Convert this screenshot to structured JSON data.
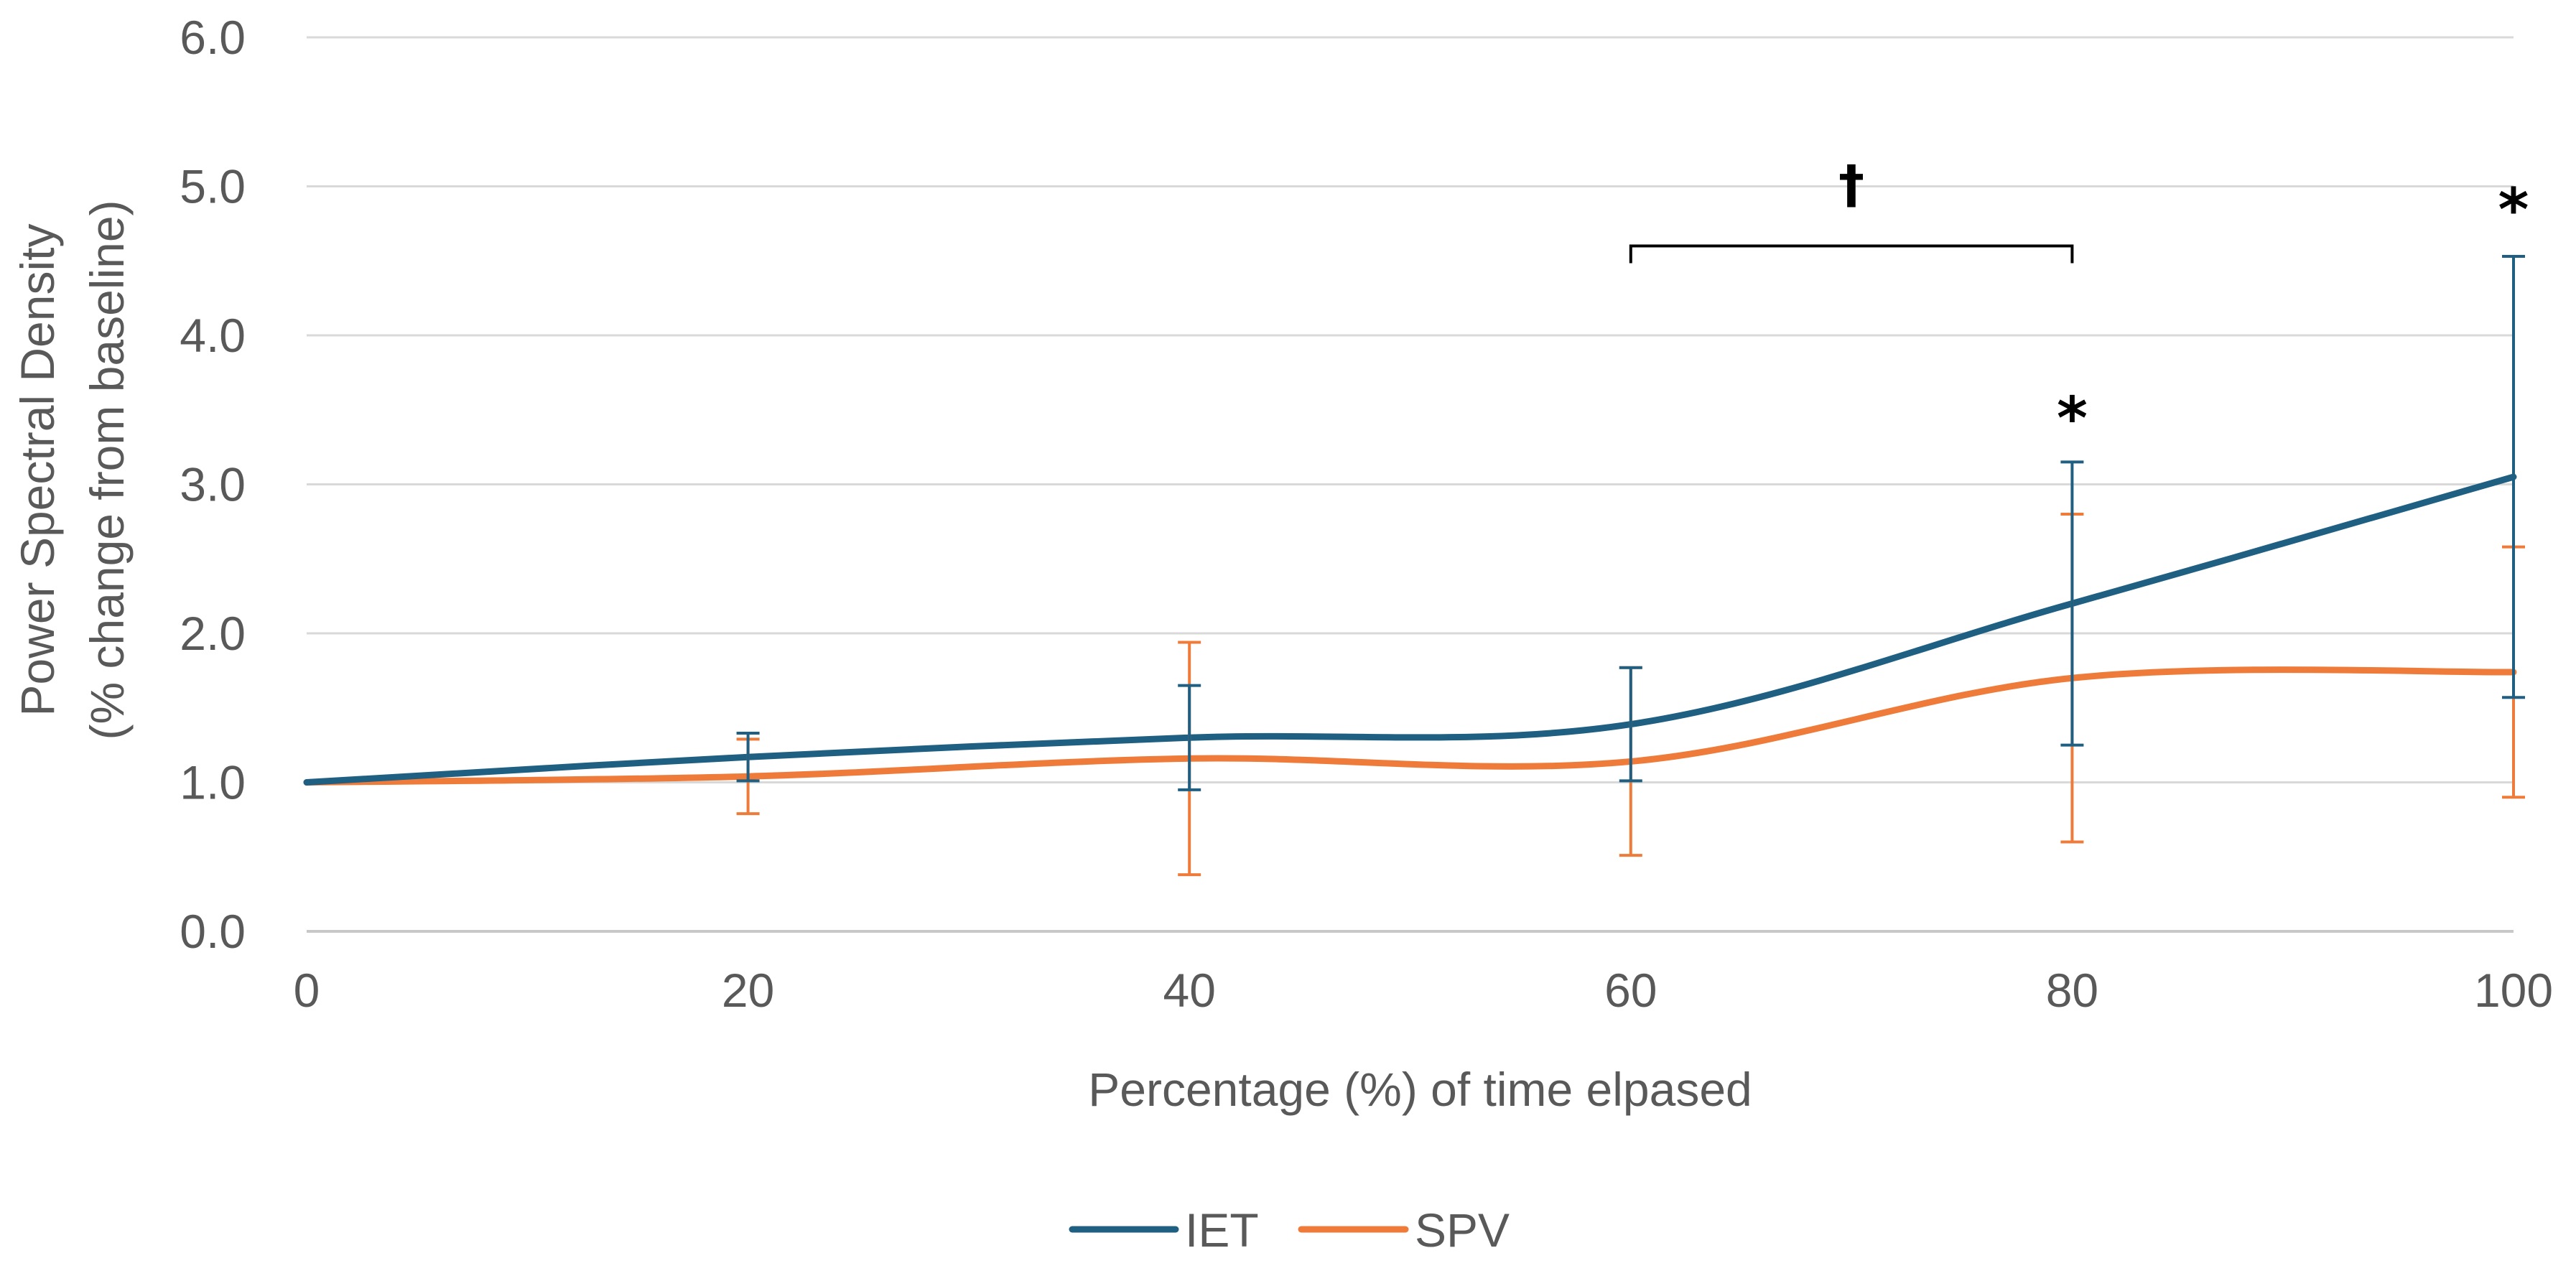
{
  "chart_data": {
    "type": "line",
    "title": "",
    "xlabel": "Percentage (%) of time elpased",
    "ylabel": [
      "Power Spectral Density",
      "(% change from baseline)"
    ],
    "x": [
      0,
      20,
      40,
      60,
      80,
      100
    ],
    "xlim": [
      0,
      100
    ],
    "ylim": [
      0.0,
      6.0
    ],
    "x_ticks": [
      0,
      20,
      40,
      60,
      80,
      100
    ],
    "y_ticks": [
      0.0,
      1.0,
      2.0,
      3.0,
      4.0,
      5.0,
      6.0
    ],
    "x_tick_labels": [
      "0",
      "20",
      "40",
      "60",
      "80",
      "100"
    ],
    "y_tick_labels": [
      "0.0",
      "1.0",
      "2.0",
      "3.0",
      "4.0",
      "5.0",
      "6.0"
    ],
    "grid": true,
    "smooth": true,
    "legend_position": "bottom",
    "series": [
      {
        "name": "IET",
        "color": "#1f5f82",
        "values": [
          1.0,
          1.17,
          1.3,
          1.39,
          2.2,
          3.05
        ],
        "error": [
          0.0,
          0.16,
          0.35,
          0.38,
          0.95,
          1.48
        ]
      },
      {
        "name": "SPV",
        "color": "#ef7b3a",
        "values": [
          1.0,
          1.04,
          1.16,
          1.14,
          1.7,
          1.74
        ],
        "error": [
          0.0,
          0.25,
          0.78,
          0.63,
          1.1,
          0.84
        ]
      }
    ],
    "annotations": [
      {
        "text": "*",
        "x": 80,
        "y": 3.5
      },
      {
        "text": "*",
        "x": 100,
        "y": 4.9
      },
      {
        "text": "†",
        "x": 70,
        "y": 5.0
      }
    ],
    "bracket": {
      "x_start": 60,
      "x_end": 80,
      "y": 4.6
    }
  }
}
